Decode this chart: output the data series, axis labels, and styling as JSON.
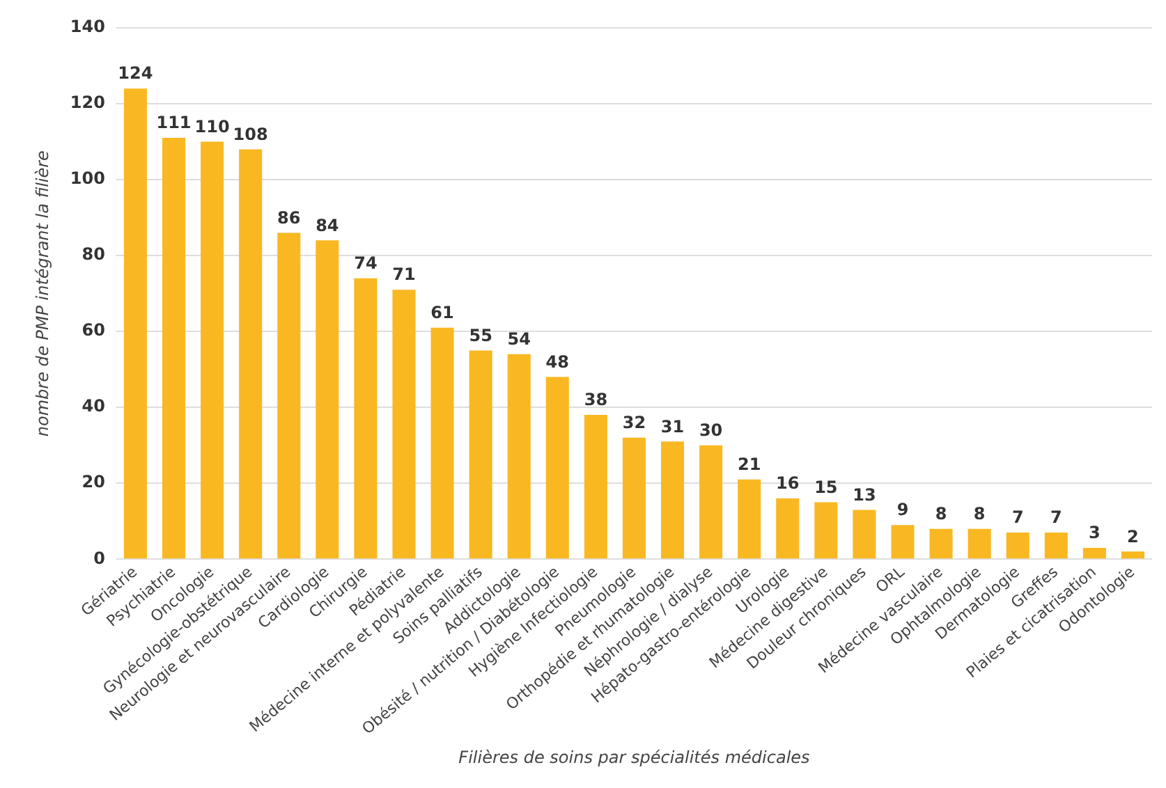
{
  "chart_data": {
    "type": "bar",
    "xlabel": "Filières de soins par spécialités médicales",
    "ylabel": "nombre de PMP intégrant la filière",
    "categories": [
      "Gériatrie",
      "Psychiatrie",
      "Oncologie",
      "Gynécologie-obstétrique",
      "Neurologie et neurovasculaire",
      "Cardiologie",
      "Chirurgie",
      "Pédiatrie",
      "Médecine interne et polyvalente",
      "Soins palliatifs",
      "Addictologie",
      "Obésité / nutrition / Diabétologie",
      "Hygiène Infectiologie",
      "Pneumologie",
      "Orthopédie et rhumatologie",
      "Néphrologie / dialyse",
      "Hépato-gastro-entérologie",
      "Urologie",
      "Médecine digestive",
      "Douleur chroniques",
      "ORL",
      "Médecine vasculaire",
      "Ophtalmologie",
      "Dermatologie",
      "Greffes",
      "Plaies et cicatrisation",
      "Odontologie"
    ],
    "values": [
      124,
      111,
      110,
      108,
      86,
      84,
      74,
      71,
      61,
      55,
      54,
      48,
      38,
      32,
      31,
      30,
      21,
      16,
      15,
      13,
      9,
      8,
      8,
      7,
      7,
      3,
      2
    ],
    "color": "#f9b822",
    "ylim": [
      0,
      140
    ],
    "yticks": [
      0,
      20,
      40,
      60,
      80,
      100,
      120,
      140
    ],
    "grid": "y",
    "data_labels": true,
    "legend": false
  }
}
